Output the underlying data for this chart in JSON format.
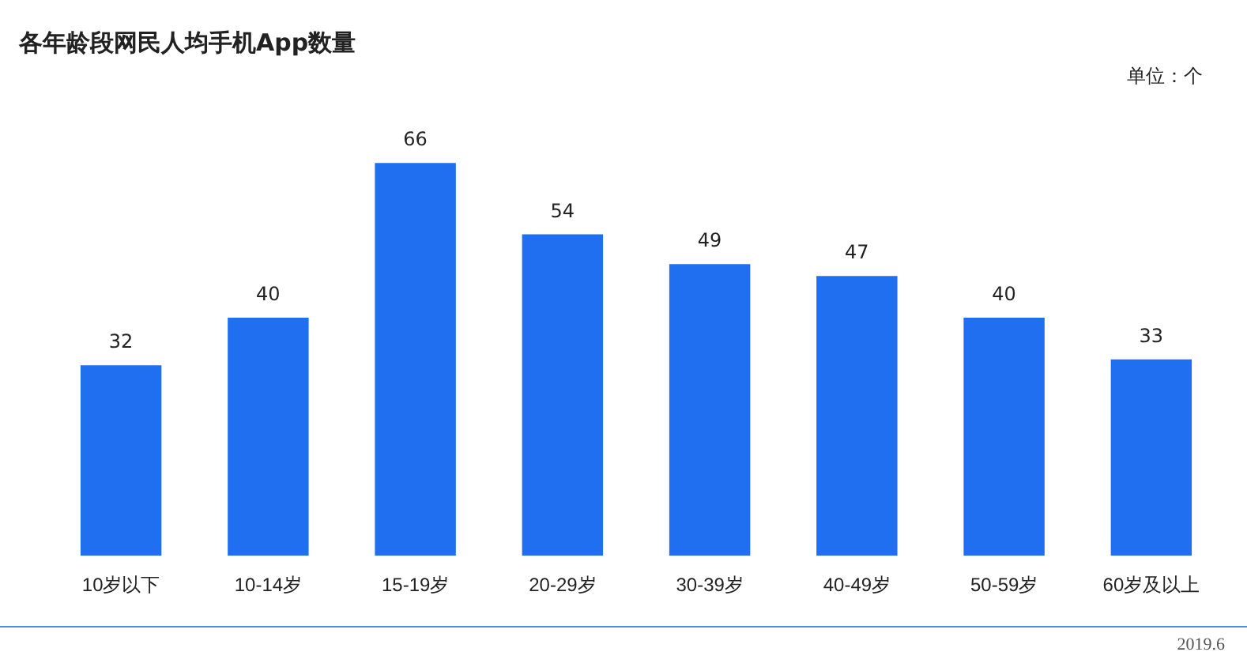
{
  "chart_data": {
    "type": "bar",
    "title": "各年龄段网民人均手机App数量",
    "categories": [
      "10岁以下",
      "10-14岁",
      "15-19岁",
      "20-29岁",
      "30-39岁",
      "40-49岁",
      "50-59岁",
      "60岁及以上"
    ],
    "values": [
      32,
      40,
      66,
      54,
      49,
      47,
      40,
      33
    ],
    "color": "#1f6ff0",
    "data_labels": true,
    "grid": false,
    "legend": false,
    "annotations": [
      "单位：个",
      "2019.6"
    ]
  }
}
